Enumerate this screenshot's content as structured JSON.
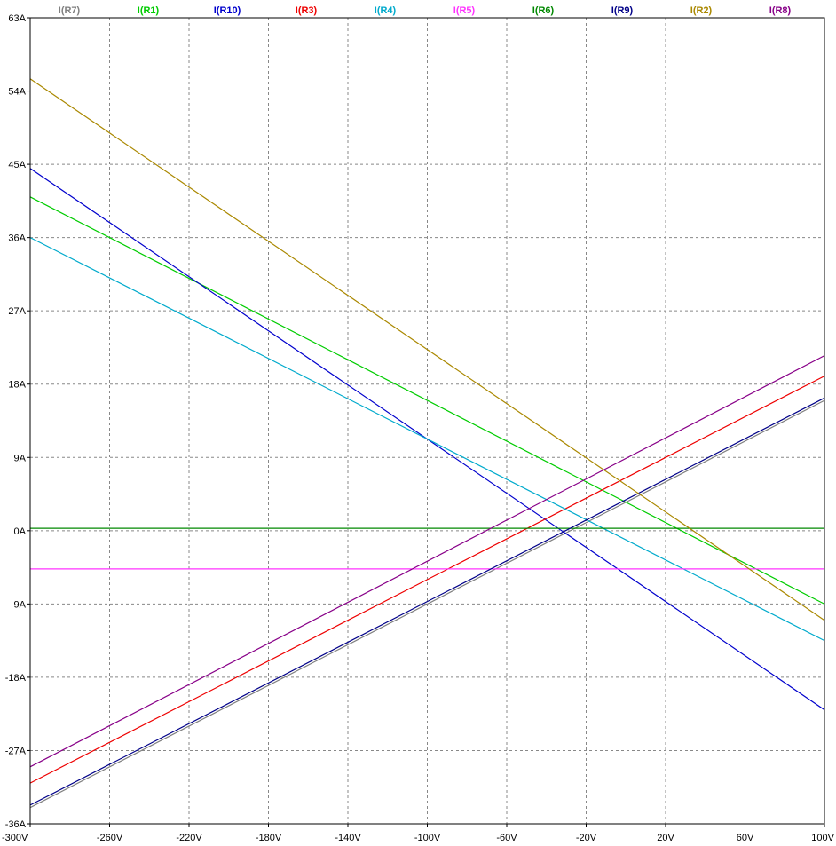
{
  "chart_data": {
    "type": "line",
    "title": "",
    "xlabel": "",
    "ylabel": "",
    "xlim": [
      -300,
      100
    ],
    "ylim": [
      -36,
      63
    ],
    "grid": true,
    "legend_position": "top",
    "x_ticks": [
      -300,
      -260,
      -220,
      -180,
      -140,
      -100,
      -60,
      -20,
      20,
      60,
      100
    ],
    "x_tick_labels": [
      "-300V",
      "-260V",
      "-220V",
      "-180V",
      "-140V",
      "-100V",
      "-60V",
      "-20V",
      "20V",
      "60V",
      "100V"
    ],
    "y_ticks": [
      63,
      54,
      45,
      36,
      27,
      18,
      9,
      0,
      -9,
      -18,
      -27,
      -36
    ],
    "y_tick_labels": [
      "63A",
      "54A",
      "45A",
      "36A",
      "27A",
      "18A",
      "9A",
      "0A",
      "-9A",
      "-18A",
      "-27A",
      "-36A"
    ],
    "series": [
      {
        "name": "I(R7)",
        "color": "#808080",
        "x": [
          -300,
          100
        ],
        "values": [
          -34,
          16
        ]
      },
      {
        "name": "I(R1)",
        "color": "#00cc00",
        "x": [
          -300,
          100
        ],
        "values": [
          41,
          -9
        ]
      },
      {
        "name": "I(R10)",
        "color": "#0000cc",
        "x": [
          -300,
          100
        ],
        "values": [
          44.5,
          -22
        ]
      },
      {
        "name": "I(R3)",
        "color": "#ee0000",
        "x": [
          -300,
          100
        ],
        "values": [
          -31,
          19
        ]
      },
      {
        "name": "I(R4)",
        "color": "#00aacc",
        "x": [
          -300,
          100
        ],
        "values": [
          36,
          -13.5
        ]
      },
      {
        "name": "I(R5)",
        "color": "#ff33ff",
        "x": [
          -300,
          100
        ],
        "values": [
          -4.7,
          -4.7
        ]
      },
      {
        "name": "I(R6)",
        "color": "#008800",
        "x": [
          -300,
          100
        ],
        "values": [
          0.3,
          0.3
        ]
      },
      {
        "name": "I(R9)",
        "color": "#000088",
        "x": [
          -300,
          100
        ],
        "values": [
          -33.7,
          16.3
        ]
      },
      {
        "name": "I(R2)",
        "color": "#aa8800",
        "x": [
          -300,
          100
        ],
        "values": [
          55.5,
          -11
        ]
      },
      {
        "name": "I(R8)",
        "color": "#880088",
        "x": [
          -300,
          100
        ],
        "values": [
          -29,
          21.5
        ]
      }
    ]
  }
}
